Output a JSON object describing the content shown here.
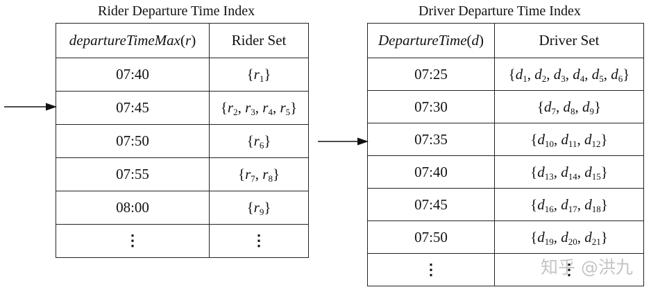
{
  "rider_index": {
    "title": "Rider Departure Time Index",
    "header_key_fn": "departureTimeMax",
    "header_key_arg": "r",
    "header_set": "Rider Set",
    "rows": [
      {
        "time": "07:40",
        "set": [
          [
            "r",
            "1"
          ]
        ]
      },
      {
        "time": "07:45",
        "set": [
          [
            "r",
            "2"
          ],
          [
            "r",
            "3"
          ],
          [
            "r",
            "4"
          ],
          [
            "r",
            "5"
          ]
        ]
      },
      {
        "time": "07:50",
        "set": [
          [
            "r",
            "6"
          ]
        ]
      },
      {
        "time": "07:55",
        "set": [
          [
            "r",
            "7"
          ],
          [
            "r",
            "8"
          ]
        ]
      },
      {
        "time": "08:00",
        "set": [
          [
            "r",
            "9"
          ]
        ]
      }
    ],
    "ellipsis": "⋮",
    "pointer_row": "07:45"
  },
  "driver_index": {
    "title": "Driver Departure Time Index",
    "header_key_fn": "DepartureTime",
    "header_key_arg": "d",
    "header_set": "Driver Set",
    "rows": [
      {
        "time": "07:25",
        "set": [
          [
            "d",
            "1"
          ],
          [
            "d",
            "2"
          ],
          [
            "d",
            "3"
          ],
          [
            "d",
            "4"
          ],
          [
            "d",
            "5"
          ],
          [
            "d",
            "6"
          ]
        ]
      },
      {
        "time": "07:30",
        "set": [
          [
            "d",
            "7"
          ],
          [
            "d",
            "8"
          ],
          [
            "d",
            "9"
          ]
        ]
      },
      {
        "time": "07:35",
        "set": [
          [
            "d",
            "10"
          ],
          [
            "d",
            "11"
          ],
          [
            "d",
            "12"
          ]
        ]
      },
      {
        "time": "07:40",
        "set": [
          [
            "d",
            "13"
          ],
          [
            "d",
            "14"
          ],
          [
            "d",
            "15"
          ]
        ]
      },
      {
        "time": "07:45",
        "set": [
          [
            "d",
            "16"
          ],
          [
            "d",
            "17"
          ],
          [
            "d",
            "18"
          ]
        ]
      },
      {
        "time": "07:50",
        "set": [
          [
            "d",
            "19"
          ],
          [
            "d",
            "20"
          ],
          [
            "d",
            "21"
          ]
        ]
      }
    ],
    "ellipsis": "⋮",
    "pointer_row": "07:35"
  },
  "watermark": "知乎 @洪九"
}
